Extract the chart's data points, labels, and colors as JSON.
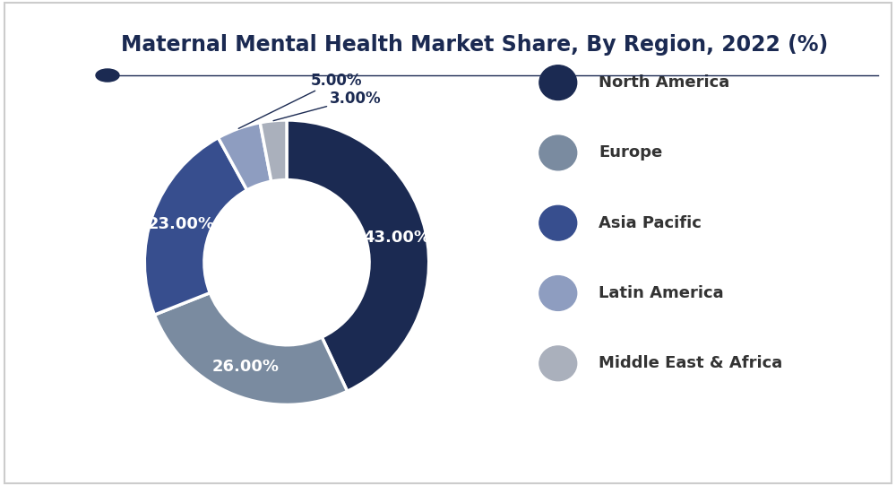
{
  "title": "Maternal Mental Health Market Share, By Region, 2022 (%)",
  "slices": [
    43.0,
    26.0,
    23.0,
    5.0,
    3.0
  ],
  "labels": [
    "North America",
    "Europe",
    "Asia Pacific",
    "Latin America",
    "Middle East & Africa"
  ],
  "colors": [
    "#1b2a52",
    "#7a8ba0",
    "#374e8e",
    "#8e9dc0",
    "#aab0bc"
  ],
  "pct_labels": [
    "43.00%",
    "26.00%",
    "23.00%",
    "5.00%",
    "3.00%"
  ],
  "startangle": 90,
  "bg_color": "#ffffff",
  "text_color": "#1b2a52",
  "legend_text_color": "#333333",
  "title_fontsize": 17,
  "legend_fontsize": 13,
  "pct_fontsize": 13,
  "donut_width": 0.42
}
